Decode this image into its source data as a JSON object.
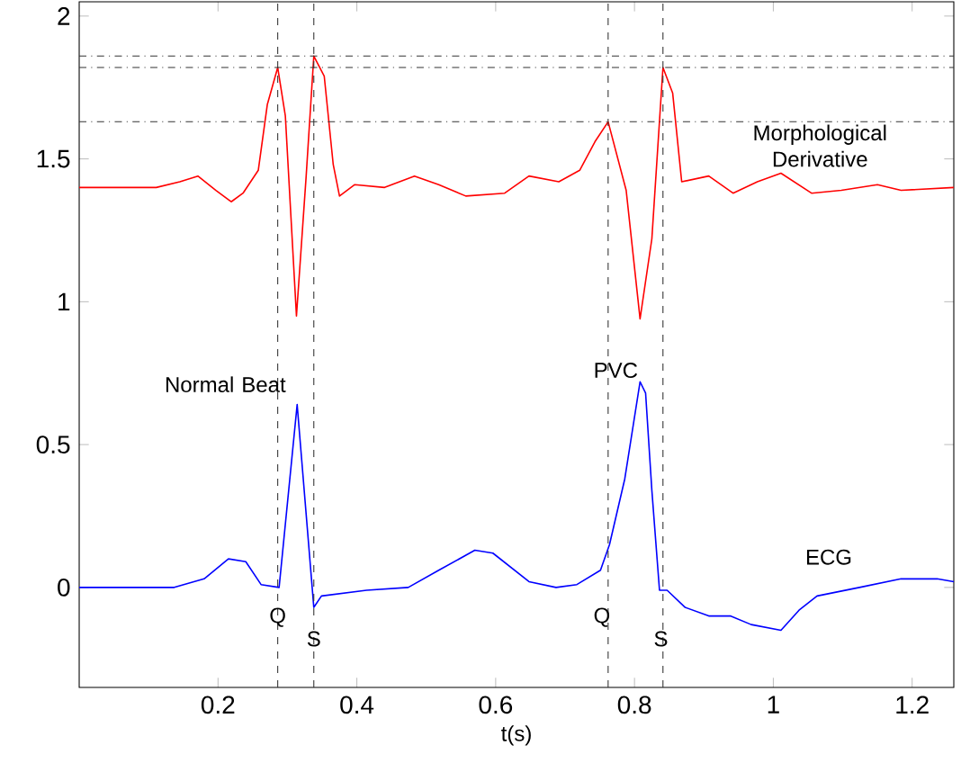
{
  "chart_data": {
    "type": "line",
    "xlabel": "t(s)",
    "xlim": [
      0,
      1.26
    ],
    "ylim": [
      -0.35,
      2.05
    ],
    "xticks": [
      0.2,
      0.4,
      0.6,
      0.8,
      1,
      1.2
    ],
    "yticks": [
      0,
      0.5,
      1,
      1.5,
      2
    ],
    "series": [
      {
        "color": "#ff0000",
        "x": [
          0,
          0.111,
          0.145,
          0.171,
          0.197,
          0.219,
          0.236,
          0.258,
          0.271,
          0.286,
          0.297,
          0.313,
          0.327,
          0.338,
          0.353,
          0.366,
          0.375,
          0.397,
          0.44,
          0.483,
          0.518,
          0.557,
          0.613,
          0.648,
          0.691,
          0.721,
          0.743,
          0.762,
          0.788,
          0.808,
          0.825,
          0.841,
          0.855,
          0.868,
          0.907,
          0.942,
          0.977,
          1.011,
          1.055,
          1.098,
          1.15,
          1.184,
          1.26
        ],
        "values": [
          1.4,
          1.4,
          1.42,
          1.44,
          1.39,
          1.35,
          1.38,
          1.46,
          1.69,
          1.82,
          1.65,
          0.95,
          1.44,
          1.86,
          1.79,
          1.48,
          1.37,
          1.41,
          1.4,
          1.44,
          1.41,
          1.37,
          1.38,
          1.44,
          1.42,
          1.46,
          1.56,
          1.63,
          1.39,
          0.94,
          1.22,
          1.82,
          1.73,
          1.42,
          1.44,
          1.38,
          1.42,
          1.45,
          1.38,
          1.39,
          1.41,
          1.39,
          1.4
        ]
      },
      {
        "color": "#0000ff",
        "x": [
          0,
          0.137,
          0.18,
          0.215,
          0.24,
          0.262,
          0.288,
          0.314,
          0.338,
          0.349,
          0.414,
          0.474,
          0.518,
          0.57,
          0.596,
          0.648,
          0.687,
          0.717,
          0.751,
          0.764,
          0.786,
          0.808,
          0.816,
          0.825,
          0.836,
          0.847,
          0.873,
          0.907,
          0.938,
          0.968,
          1.011,
          1.037,
          1.063,
          1.124,
          1.184,
          1.236,
          1.26
        ],
        "values": [
          0.0,
          0.0,
          0.03,
          0.1,
          0.09,
          0.01,
          0.0,
          0.64,
          -0.07,
          -0.03,
          -0.01,
          0.0,
          0.06,
          0.13,
          0.12,
          0.02,
          0.0,
          0.01,
          0.06,
          0.15,
          0.38,
          0.72,
          0.68,
          0.34,
          -0.01,
          -0.01,
          -0.07,
          -0.1,
          -0.1,
          -0.13,
          -0.15,
          -0.08,
          -0.03,
          0.0,
          0.03,
          0.03,
          0.02
        ]
      }
    ],
    "ref_lines": [
      {
        "axis": "x",
        "value": 0.286,
        "line_style": "dashed"
      },
      {
        "axis": "x",
        "value": 0.338,
        "line_style": "dashed"
      },
      {
        "axis": "x",
        "value": 0.762,
        "line_style": "dashed"
      },
      {
        "axis": "x",
        "value": 0.841,
        "line_style": "dashed"
      },
      {
        "axis": "y",
        "value": 1.86,
        "line_style": "dashdotted"
      },
      {
        "axis": "y",
        "value": 1.82,
        "line_style": "dashdotted"
      },
      {
        "axis": "y",
        "value": 1.63,
        "line_style": "dashdotted"
      }
    ],
    "annotations": [
      "Normal Beat",
      {
        "text": "PVC",
        "x": 0.773,
        "y": 0.76
      },
      "Morphological Derivative",
      "ECG",
      {
        "text": "Q",
        "x": 0.286,
        "y": -0.105
      },
      {
        "text": "S",
        "x": 0.338,
        "y": -0.18
      },
      {
        "text": "Q",
        "x": 0.753,
        "y": -0.105
      },
      {
        "text": "S",
        "x": 0.838,
        "y": -0.18
      }
    ]
  }
}
